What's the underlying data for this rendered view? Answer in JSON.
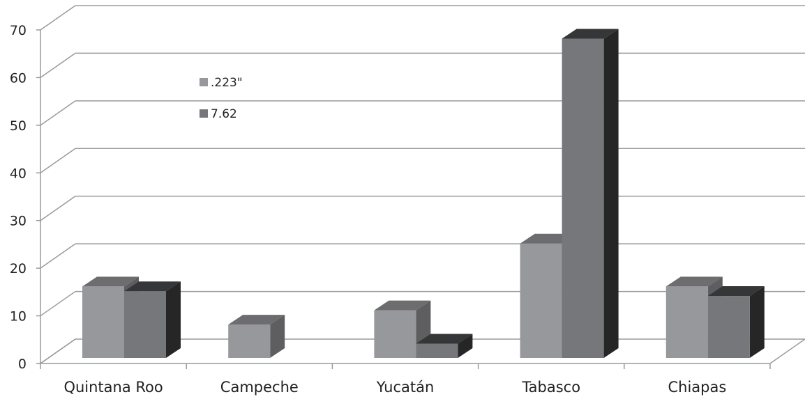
{
  "chart_data": {
    "type": "bar",
    "categories": [
      "Quintana Roo",
      "Campeche",
      "Yucatán",
      "Tabasco",
      "Chiapas"
    ],
    "series": [
      {
        "name": ".223\"",
        "values": [
          15,
          7,
          10,
          24,
          15
        ],
        "color": "#97989c"
      },
      {
        "name": "7.62",
        "values": [
          14,
          0,
          3,
          67,
          13
        ],
        "color": "#76777b"
      }
    ],
    "yticks": [
      0,
      10,
      20,
      30,
      40,
      50,
      60,
      70
    ],
    "ylim": [
      0,
      70
    ],
    "grid": true,
    "legend_position": "top-left",
    "style": "3d-clustered"
  }
}
